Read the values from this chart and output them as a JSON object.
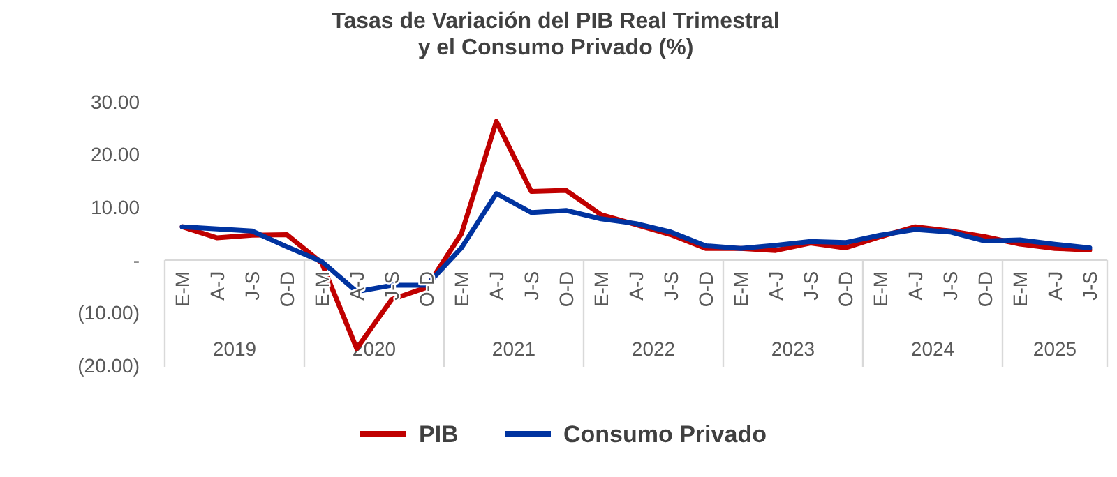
{
  "chart_data": {
    "type": "line",
    "title": "Tasas de Variación del PIB Real Trimestral\ny el Consumo Privado (%)",
    "categories": [
      "E-M",
      "A-J",
      "J-S",
      "O-D",
      "E-M",
      "A-J",
      "J-S",
      "O-D",
      "E-M",
      "A-J",
      "J-S",
      "O-D",
      "E-M",
      "A-J",
      "J-S",
      "O-D",
      "E-M",
      "A-J",
      "J-S",
      "O-D",
      "E-M",
      "A-J",
      "J-S",
      "O-D",
      "E-M",
      "A-J",
      "J-S"
    ],
    "annotations": [
      "2019",
      "2020",
      "2021",
      "2022",
      "2023",
      "2024",
      "2025"
    ],
    "series": [
      {
        "name": "PIB",
        "color": "#c00000",
        "values": [
          6.3,
          4.2,
          4.7,
          4.8,
          -0.6,
          -16.8,
          -7.5,
          -5.2,
          5.0,
          26.3,
          13.0,
          13.2,
          8.6,
          6.7,
          4.8,
          2.2,
          2.2,
          1.8,
          3.2,
          2.3,
          4.4,
          6.3,
          5.5,
          4.4,
          3.0,
          2.2,
          1.9
        ]
      },
      {
        "name": "Consumo Privado",
        "color": "#0033a0",
        "values": [
          6.3,
          5.9,
          5.5,
          2.5,
          -0.3,
          -6.0,
          -4.8,
          -4.8,
          2.3,
          12.6,
          9.0,
          9.4,
          7.8,
          6.9,
          5.3,
          2.7,
          2.2,
          2.8,
          3.5,
          3.3,
          4.7,
          5.8,
          5.3,
          3.6,
          3.8,
          3.0,
          2.3
        ]
      }
    ],
    "ylim": [
      -20,
      30
    ],
    "yticks": [
      {
        "value": -20,
        "label": "(20.00)"
      },
      {
        "value": -10,
        "label": "(10.00)"
      },
      {
        "value": 0,
        "label": "-"
      },
      {
        "value": 10,
        "label": "10.00"
      },
      {
        "value": 20,
        "label": "20.00"
      },
      {
        "value": 30,
        "label": "30.00"
      }
    ],
    "grid": false,
    "legend": "bottom",
    "marker": "none",
    "line_style": "solid"
  }
}
